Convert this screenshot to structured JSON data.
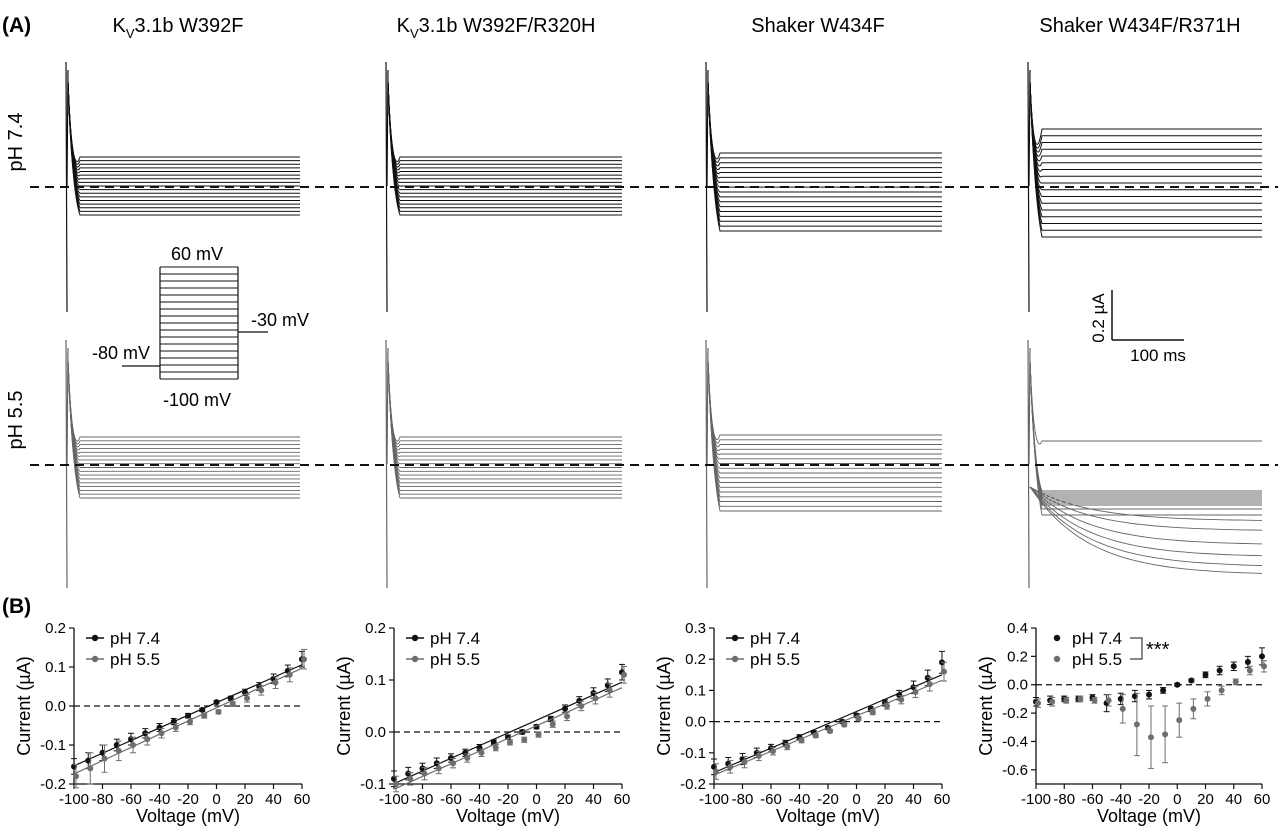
{
  "panel_a_label": "(A)",
  "panel_b_label": "(B)",
  "columns": [
    {
      "title": "Kv3.1b W392F",
      "title_main": "K",
      "title_sub": "V",
      "title_rest": "3.1b W392F"
    },
    {
      "title": "Kv3.1b W392F/R320H",
      "title_main": "K",
      "title_sub": "V",
      "title_rest": "3.1b W392F/R320H"
    },
    {
      "title": "Shaker W434F",
      "title_main": "Shaker W434F",
      "title_sub": "",
      "title_rest": ""
    },
    {
      "title": "Shaker W434F/R371H",
      "title_main": "Shaker W434F/R371H",
      "title_sub": "",
      "title_rest": ""
    }
  ],
  "rows": [
    {
      "label": "pH 7.4",
      "color": "#111111"
    },
    {
      "label": "pH 5.5",
      "color": "#5a5a5a"
    }
  ],
  "protocol": {
    "top": "60 mV",
    "bottom": "-100 mV",
    "holding": "-80 mV",
    "tail": "-30 mV",
    "steps": 17
  },
  "scale_bar": {
    "current": "0.2 µA",
    "time": "100 ms"
  },
  "significance": "***",
  "chart_data": [
    {
      "type": "line",
      "title": "Kv3.1b W392F",
      "xlabel": "Voltage (mV)",
      "ylabel": "Current (µA)",
      "xlim": [
        -100,
        60
      ],
      "ylim": [
        -0.2,
        0.2
      ],
      "xticks": [
        -100,
        -80,
        -60,
        -40,
        -20,
        0,
        20,
        40,
        60
      ],
      "yticks": [
        -0.2,
        -0.1,
        0.0,
        0.1,
        0.2
      ],
      "ytick_labels": [
        "-0.2",
        "-0.1",
        "0.0",
        "0.1",
        "0.2"
      ],
      "legend": "top-left",
      "x": [
        -100,
        -90,
        -80,
        -70,
        -60,
        -50,
        -40,
        -30,
        -20,
        -10,
        0,
        10,
        20,
        30,
        40,
        50,
        60
      ],
      "series": [
        {
          "name": "pH 7.4",
          "color": "#111111",
          "values": [
            -0.155,
            -0.14,
            -0.12,
            -0.1,
            -0.085,
            -0.07,
            -0.055,
            -0.04,
            -0.025,
            -0.01,
            0.01,
            0.02,
            0.035,
            0.05,
            0.07,
            0.09,
            0.12
          ],
          "errors": [
            0.02,
            0.02,
            0.02,
            0.015,
            0.015,
            0.012,
            0.01,
            0.008,
            0.006,
            0.004,
            0.004,
            0.005,
            0.008,
            0.01,
            0.012,
            0.015,
            0.02
          ]
        },
        {
          "name": "pH 5.5",
          "color": "#6e6e6e",
          "values": [
            -0.18,
            -0.16,
            -0.135,
            -0.115,
            -0.1,
            -0.085,
            -0.07,
            -0.055,
            -0.04,
            -0.025,
            -0.015,
            0.005,
            0.02,
            0.04,
            0.06,
            0.08,
            0.12
          ],
          "errors": [
            0.03,
            0.04,
            0.035,
            0.025,
            0.02,
            0.015,
            0.012,
            0.01,
            0.008,
            0.006,
            0.005,
            0.006,
            0.01,
            0.012,
            0.015,
            0.018,
            0.025
          ]
        }
      ]
    },
    {
      "type": "line",
      "title": "Kv3.1b W392F/R320H",
      "xlabel": "Voltage (mV)",
      "ylabel": "Current (µA)",
      "xlim": [
        -100,
        60
      ],
      "ylim": [
        -0.1,
        0.2
      ],
      "xticks": [
        -100,
        -80,
        -60,
        -40,
        -20,
        0,
        20,
        40,
        60
      ],
      "yticks": [
        -0.1,
        0.0,
        0.1,
        0.2
      ],
      "ytick_labels": [
        "-0.1",
        "0.0",
        "0.1",
        "0.2"
      ],
      "legend": "top-left",
      "x": [
        -100,
        -90,
        -80,
        -70,
        -60,
        -50,
        -40,
        -30,
        -20,
        -10,
        0,
        10,
        20,
        30,
        40,
        50,
        60
      ],
      "series": [
        {
          "name": "pH 7.4",
          "color": "#111111",
          "values": [
            -0.09,
            -0.08,
            -0.07,
            -0.06,
            -0.05,
            -0.04,
            -0.03,
            -0.02,
            -0.01,
            0.0,
            0.01,
            0.025,
            0.045,
            0.06,
            0.075,
            0.09,
            0.115
          ],
          "errors": [
            0.015,
            0.012,
            0.01,
            0.01,
            0.008,
            0.007,
            0.006,
            0.005,
            0.004,
            0.004,
            0.004,
            0.005,
            0.007,
            0.008,
            0.01,
            0.012,
            0.015
          ]
        },
        {
          "name": "pH 5.5",
          "color": "#6e6e6e",
          "values": [
            -0.1,
            -0.09,
            -0.08,
            -0.07,
            -0.06,
            -0.05,
            -0.04,
            -0.03,
            -0.02,
            -0.015,
            -0.005,
            0.015,
            0.03,
            0.05,
            0.065,
            0.08,
            0.11
          ],
          "errors": [
            0.015,
            0.012,
            0.012,
            0.01,
            0.009,
            0.008,
            0.007,
            0.006,
            0.005,
            0.005,
            0.005,
            0.006,
            0.008,
            0.009,
            0.011,
            0.013,
            0.016
          ]
        }
      ]
    },
    {
      "type": "line",
      "title": "Shaker W434F",
      "xlabel": "Voltage (mV)",
      "ylabel": "Current (µA)",
      "xlim": [
        -100,
        60
      ],
      "ylim": [
        -0.2,
        0.3
      ],
      "xticks": [
        -100,
        -80,
        -60,
        -40,
        -20,
        0,
        20,
        40,
        60
      ],
      "yticks": [
        -0.2,
        -0.1,
        0.0,
        0.1,
        0.2,
        0.3
      ],
      "ytick_labels": [
        "-0.2",
        "-0.1",
        "0.0",
        "0.1",
        "0.2",
        "0.3"
      ],
      "legend": "top-left",
      "x": [
        -100,
        -90,
        -80,
        -70,
        -60,
        -50,
        -40,
        -30,
        -20,
        -10,
        0,
        10,
        20,
        30,
        40,
        50,
        60
      ],
      "series": [
        {
          "name": "pH 7.4",
          "color": "#111111",
          "values": [
            -0.145,
            -0.135,
            -0.12,
            -0.1,
            -0.085,
            -0.07,
            -0.05,
            -0.035,
            -0.02,
            0.0,
            0.02,
            0.04,
            0.06,
            0.085,
            0.11,
            0.14,
            0.19
          ],
          "errors": [
            0.025,
            0.02,
            0.018,
            0.015,
            0.012,
            0.01,
            0.008,
            0.006,
            0.005,
            0.005,
            0.006,
            0.008,
            0.01,
            0.015,
            0.02,
            0.025,
            0.035
          ]
        },
        {
          "name": "pH 5.5",
          "color": "#6e6e6e",
          "values": [
            -0.16,
            -0.145,
            -0.13,
            -0.11,
            -0.095,
            -0.08,
            -0.06,
            -0.045,
            -0.03,
            -0.01,
            0.01,
            0.03,
            0.05,
            0.07,
            0.095,
            0.12,
            0.16
          ],
          "errors": [
            0.025,
            0.02,
            0.018,
            0.015,
            0.012,
            0.01,
            0.008,
            0.006,
            0.005,
            0.005,
            0.006,
            0.008,
            0.01,
            0.013,
            0.018,
            0.022,
            0.03
          ]
        }
      ]
    },
    {
      "type": "scatter",
      "title": "Shaker W434F/R371H",
      "xlabel": "Voltage (mV)",
      "ylabel": "Current (µA)",
      "xlim": [
        -100,
        60
      ],
      "ylim": [
        -0.7,
        0.4
      ],
      "xticks": [
        -100,
        -80,
        -60,
        -40,
        -20,
        0,
        20,
        40,
        60
      ],
      "yticks": [
        -0.6,
        -0.4,
        -0.2,
        0.0,
        0.2,
        0.4
      ],
      "ytick_labels": [
        "-0.6",
        "-0.4",
        "-0.2",
        "0.0",
        "0.2",
        "0.4"
      ],
      "legend": "top-left",
      "x": [
        -100,
        -90,
        -80,
        -70,
        -60,
        -50,
        -40,
        -30,
        -20,
        -10,
        0,
        10,
        20,
        30,
        40,
        50,
        60
      ],
      "series": [
        {
          "name": "pH 7.4",
          "color": "#111111",
          "values": [
            -0.12,
            -0.11,
            -0.1,
            -0.1,
            -0.09,
            -0.13,
            -0.1,
            -0.08,
            -0.07,
            -0.04,
            0.0,
            0.03,
            0.07,
            0.1,
            0.13,
            0.16,
            0.2
          ],
          "errors": [
            0.03,
            0.03,
            0.02,
            0.02,
            0.02,
            0.06,
            0.04,
            0.04,
            0.03,
            0.02,
            0.01,
            0.01,
            0.02,
            0.03,
            0.03,
            0.04,
            0.06
          ]
        },
        {
          "name": "pH 5.5",
          "color": "#6e6e6e",
          "values": [
            -0.13,
            -0.12,
            -0.11,
            -0.1,
            -0.11,
            -0.11,
            -0.17,
            -0.28,
            -0.37,
            -0.35,
            -0.25,
            -0.17,
            -0.1,
            -0.04,
            0.02,
            0.1,
            0.13
          ],
          "errors": [
            0.03,
            0.03,
            0.02,
            0.02,
            0.02,
            0.04,
            0.1,
            0.22,
            0.22,
            0.2,
            0.12,
            0.07,
            0.05,
            0.03,
            0.02,
            0.03,
            0.04
          ]
        }
      ]
    }
  ]
}
